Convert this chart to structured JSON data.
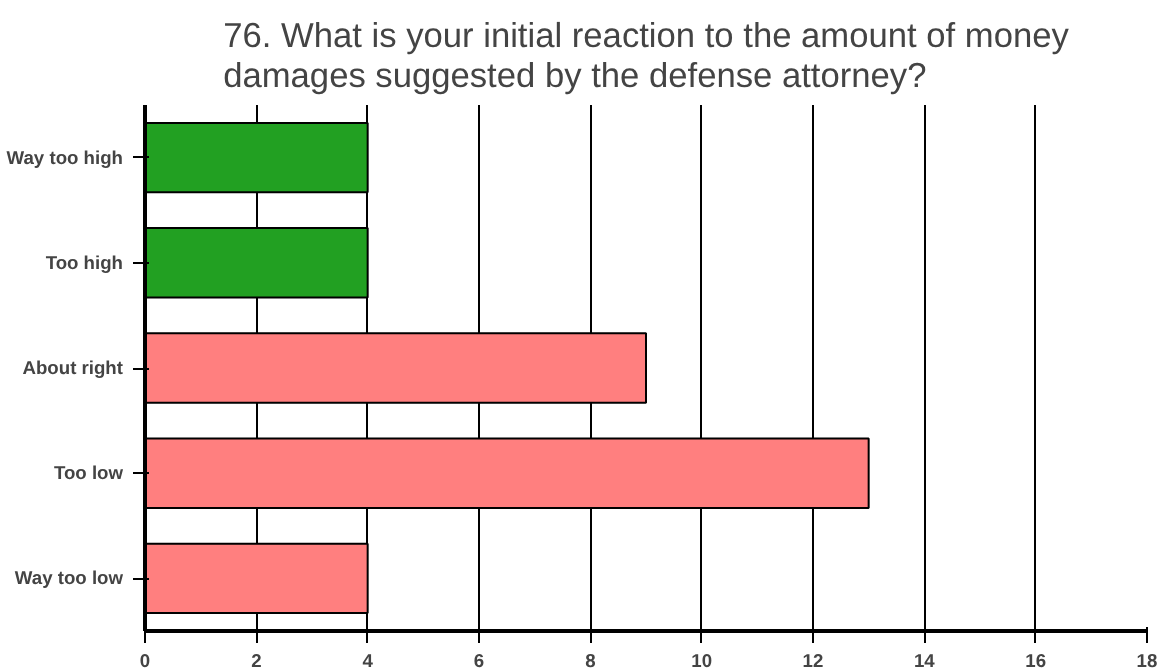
{
  "chart_data": {
    "type": "bar",
    "orientation": "horizontal",
    "title": "76. What is your initial reaction to the amount of money\ndamages suggested by the defense attorney?",
    "categories": [
      "Way too high",
      "Too high",
      "About right",
      "Too low",
      "Way too low"
    ],
    "values": [
      4,
      4,
      9,
      13,
      4
    ],
    "colors": [
      "#22a022",
      "#22a022",
      "#ff7f7f",
      "#ff7f7f",
      "#ff7f7f"
    ],
    "xlim": [
      0,
      18
    ],
    "xticks": [
      0,
      2,
      4,
      6,
      8,
      10,
      12,
      14,
      16,
      18
    ],
    "grid": "x"
  }
}
